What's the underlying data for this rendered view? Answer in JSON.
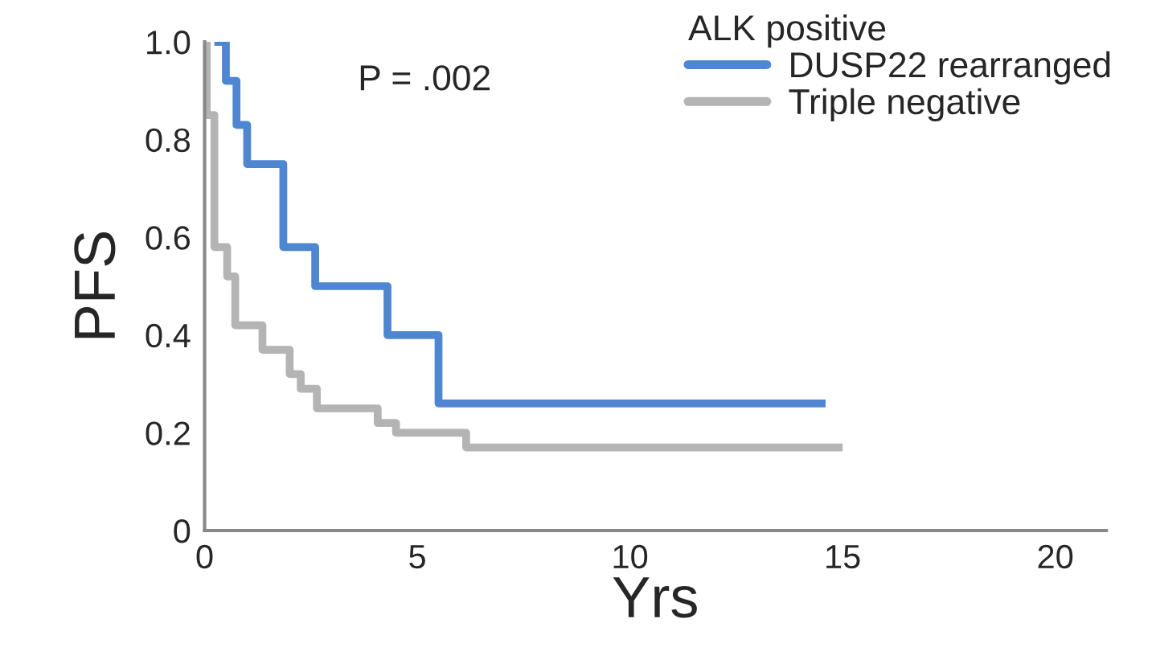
{
  "chart_data": {
    "type": "step",
    "xlabel": "Yrs",
    "ylabel": "PFS",
    "legend_title": "ALK positive",
    "legend": "top right",
    "annotations": [
      "P = .002"
    ],
    "xlim": [
      0,
      21.2
    ],
    "xticks": [
      0,
      5,
      10,
      15,
      20
    ],
    "ylim": [
      0,
      1.0
    ],
    "yticks": [
      0,
      {
        "value": 0.2,
        "label": "0.2"
      },
      {
        "value": 0.4,
        "label": "0.4"
      },
      {
        "value": 0.6,
        "label": "0.6"
      },
      {
        "value": 0.8,
        "label": "0.8"
      },
      {
        "value": 1.0,
        "label": "1.0"
      }
    ],
    "grid": false,
    "series": [
      {
        "name": "DUSP22 rearranged",
        "color": "#4f86d1",
        "x": [
          0.23,
          0.5,
          0.75,
          1.0,
          1.85,
          2.6,
          4.3,
          5.5,
          14.6
        ],
        "values": [
          1.0,
          0.92,
          0.83,
          0.75,
          0.58,
          0.5,
          0.4,
          0.26,
          0.26
        ]
      },
      {
        "name": "Triple negative",
        "color": "#b4b4b4",
        "x": [
          0,
          0.05,
          0.23,
          0.53,
          0.72,
          1.36,
          2.0,
          2.26,
          2.64,
          4.07,
          4.5,
          6.15,
          15.0
        ],
        "values": [
          1.0,
          0.85,
          0.58,
          0.52,
          0.42,
          0.37,
          0.32,
          0.29,
          0.25,
          0.22,
          0.2,
          0.17,
          0.17
        ]
      }
    ]
  }
}
